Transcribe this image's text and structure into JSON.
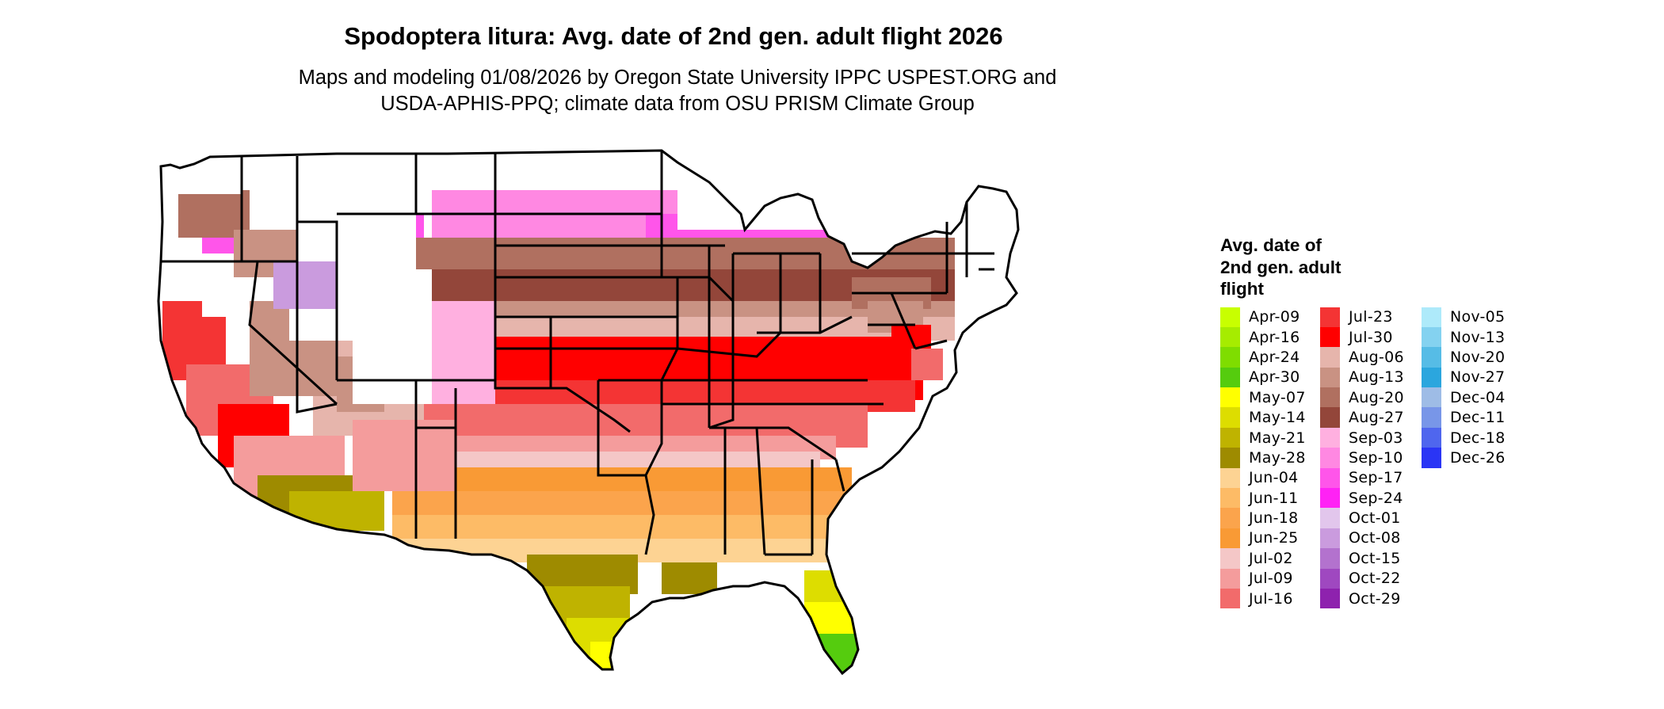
{
  "title": "Spodoptera litura: Avg. date of 2nd gen. adult flight 2026",
  "subtitle_line1": "Maps and modeling 01/08/2026 by Oregon State University IPPC USPEST.ORG and",
  "subtitle_line2": "USDA-APHIS-PPQ; climate data from OSU PRISM Climate Group",
  "legend": {
    "title_line1": "Avg. date of",
    "title_line2": "2nd gen. adult",
    "title_line3": "flight",
    "columns": [
      [
        {
          "label": "Apr-09",
          "color": "#C8FF00"
        },
        {
          "label": "Apr-16",
          "color": "#A6EC00"
        },
        {
          "label": "Apr-24",
          "color": "#7FDD00"
        },
        {
          "label": "Apr-30",
          "color": "#55CC0E"
        },
        {
          "label": "May-07",
          "color": "#FFFF00"
        },
        {
          "label": "May-14",
          "color": "#DDDD00"
        },
        {
          "label": "May-21",
          "color": "#BFB300"
        },
        {
          "label": "May-28",
          "color": "#9E8B00"
        },
        {
          "label": "Jun-04",
          "color": "#FDD393"
        },
        {
          "label": "Jun-11",
          "color": "#FDBB66"
        },
        {
          "label": "Jun-18",
          "color": "#FBA44C"
        },
        {
          "label": "Jun-25",
          "color": "#F99A35"
        },
        {
          "label": "Jul-02",
          "color": "#F4C7C7"
        },
        {
          "label": "Jul-09",
          "color": "#F49C9C"
        },
        {
          "label": "Jul-16",
          "color": "#F26B6B"
        }
      ],
      [
        {
          "label": "Jul-23",
          "color": "#F43434"
        },
        {
          "label": "Jul-30",
          "color": "#FF0000"
        },
        {
          "label": "Aug-06",
          "color": "#E6B5AC"
        },
        {
          "label": "Aug-13",
          "color": "#C99283"
        },
        {
          "label": "Aug-20",
          "color": "#B07060"
        },
        {
          "label": "Aug-27",
          "color": "#93463A"
        },
        {
          "label": "Sep-03",
          "color": "#FFB0E0"
        },
        {
          "label": "Sep-10",
          "color": "#FF88E2"
        },
        {
          "label": "Sep-17",
          "color": "#FF55EA"
        },
        {
          "label": "Sep-24",
          "color": "#FF22F5"
        },
        {
          "label": "Oct-01",
          "color": "#E2C6EC"
        },
        {
          "label": "Oct-08",
          "color": "#CA9BDE"
        },
        {
          "label": "Oct-15",
          "color": "#B372CE"
        },
        {
          "label": "Oct-22",
          "color": "#9F48C0"
        },
        {
          "label": "Oct-29",
          "color": "#8E22AE"
        }
      ],
      [
        {
          "label": "Nov-05",
          "color": "#AEEAFA"
        },
        {
          "label": "Nov-13",
          "color": "#84D2F0"
        },
        {
          "label": "Nov-20",
          "color": "#56BCE6"
        },
        {
          "label": "Nov-27",
          "color": "#2BA6DE"
        },
        {
          "label": "Dec-04",
          "color": "#9EBCE6"
        },
        {
          "label": "Dec-11",
          "color": "#7896E8"
        },
        {
          "label": "Dec-18",
          "color": "#4F66EE"
        },
        {
          "label": "Dec-26",
          "color": "#2A35F5"
        }
      ]
    ]
  }
}
